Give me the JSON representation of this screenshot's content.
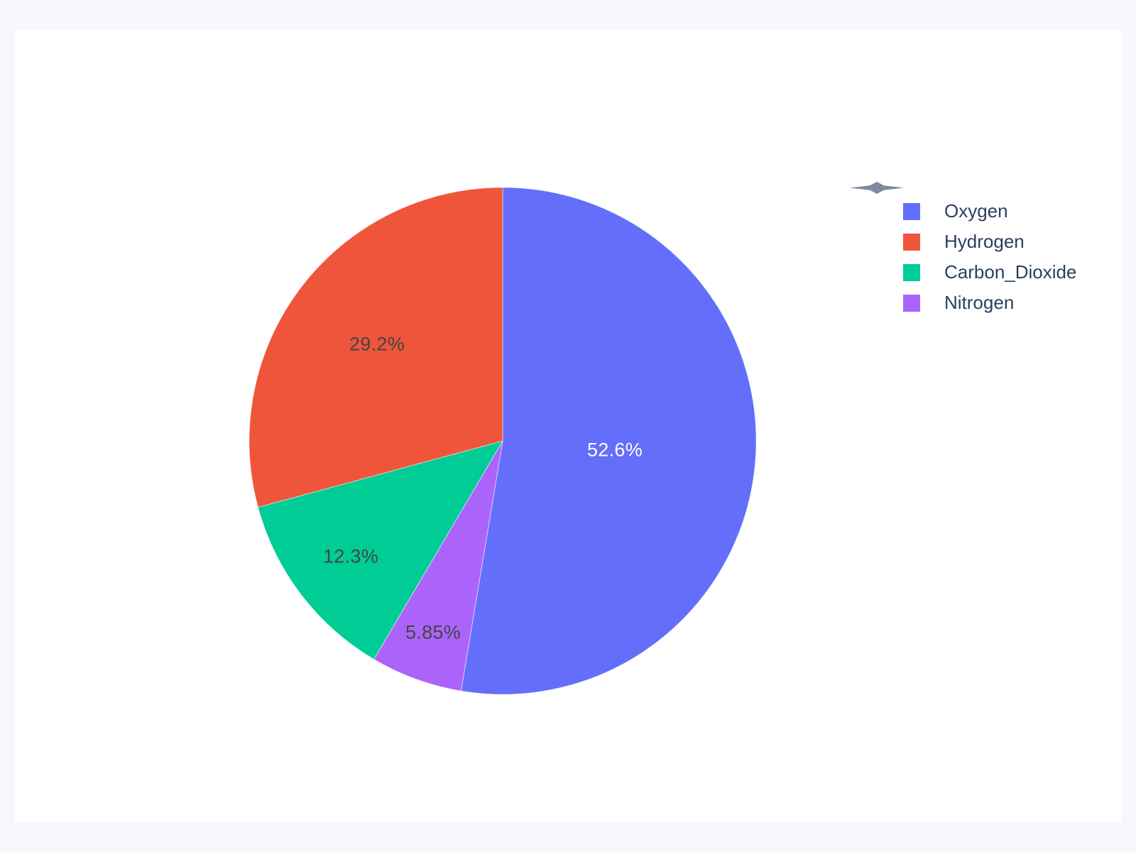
{
  "chart_data": {
    "type": "pie",
    "title": "",
    "labels": [
      "Oxygen",
      "Hydrogen",
      "Carbon_Dioxide",
      "Nitrogen"
    ],
    "values": [
      52.6,
      29.2,
      12.3,
      5.85
    ],
    "display_percents": [
      "52.6%",
      "29.2%",
      "12.3%",
      "5.85%"
    ],
    "colors": [
      "#636EFA",
      "#EF553B",
      "#00CC96",
      "#AB63FA"
    ],
    "label_text_colors": [
      "#FFFFFF",
      "#444444",
      "#444444",
      "#444444"
    ],
    "legend_position": "right",
    "start_angle_deg": 0,
    "direction": "clockwise",
    "draw_order": [
      0,
      3,
      2,
      1
    ],
    "legend_text_color": "#2a3f5f",
    "page_background": "#f6f8fc",
    "plot_background": "#ffffff",
    "sparkle_icon_color": "#7b8aa1"
  }
}
